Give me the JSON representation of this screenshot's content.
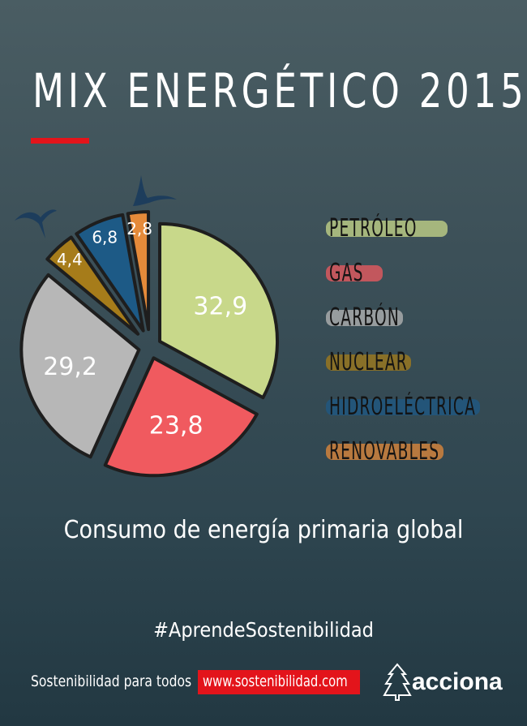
{
  "title": "MIX ENERGÉTICO 2015",
  "subtitle": "Consumo de energía primaria global",
  "hashtag": "#AprendeSostenibilidad",
  "footer": {
    "tagline": "Sostenibilidad para todos",
    "url": "www.sostenibilidad.com",
    "brand": "acciona"
  },
  "colors": {
    "accent_red": "#e3141b",
    "background": "#3c5058"
  },
  "legend": [
    {
      "label": "PETRÓLEO",
      "color": "#c8d88a"
    },
    {
      "label": "GAS",
      "color": "#f05a5f"
    },
    {
      "label": "CARBÓN",
      "color": "#b7b7b7"
    },
    {
      "label": "NUCLEAR",
      "color": "#a67c1a"
    },
    {
      "label": "HIDROELÉCTRICA",
      "color": "#1d5a86"
    },
    {
      "label": "RENOVABLES",
      "color": "#e58a3a"
    }
  ],
  "chart_data": {
    "type": "pie",
    "title": "MIX ENERGÉTICO 2015",
    "subtitle": "Consumo de energía primaria global",
    "categories": [
      "PETRÓLEO",
      "GAS",
      "CARBÓN",
      "NUCLEAR",
      "HIDROELÉCTRICA",
      "RENOVABLES"
    ],
    "values": [
      32.9,
      23.8,
      29.2,
      4.4,
      6.8,
      2.8
    ],
    "labels": [
      "32,9",
      "23,8",
      "29,2",
      "4,4",
      "6,8",
      "2,8"
    ],
    "colors": [
      "#c8d88a",
      "#f05a5f",
      "#b7b7b7",
      "#a67c1a",
      "#1d5a86",
      "#e58a3a"
    ],
    "legend_position": "right",
    "exploded": true
  }
}
